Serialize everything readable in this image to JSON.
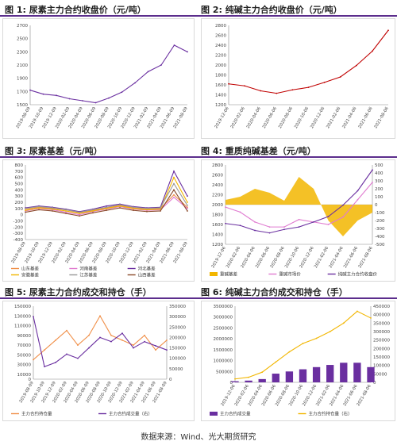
{
  "titles": {
    "c1": "图 1: 尿素主力合约收盘价（元/吨）",
    "c2": "图 2: 纯碱主力合约收盘价（元/吨）",
    "c3": "图 3: 尿素基差（元/吨）",
    "c4": "图 4: 重质纯碱基差（元/吨）",
    "c5": "图 5: 尿素主力合约成交和持仓（手）",
    "c6": "图 6: 纯碱主力合约成交和持仓（手）"
  },
  "source": "数据来源：Wind、光大期货研究",
  "colors": {
    "purple": "#6a2fa0",
    "red": "#c00000",
    "orange": "#f0904a",
    "gold": "#f2b600",
    "pink": "#e07bd0",
    "brown": "#8b4a2a",
    "accent": "#5b2d8c"
  },
  "chart_data": [
    {
      "id": "c1",
      "type": "line",
      "x": [
        "2019-08-09",
        "2019-10-09",
        "2019-12-09",
        "2020-02-09",
        "2020-04-09",
        "2020-06-09",
        "2020-08-09",
        "2020-10-09",
        "2020-12-09",
        "2021-02-09",
        "2021-04-09",
        "2021-06-09",
        "2021-08-09"
      ],
      "ylim": [
        1500,
        2700
      ],
      "yticks": [
        1500,
        1700,
        1900,
        2100,
        2300,
        2500,
        2700
      ],
      "series": [
        {
          "name": "",
          "color": "#6a2fa0",
          "values": [
            1720,
            1660,
            1640,
            1590,
            1560,
            1530,
            1600,
            1690,
            1830,
            2000,
            2100,
            2400,
            2300
          ]
        }
      ]
    },
    {
      "id": "c2",
      "type": "line",
      "x": [
        "2019-12-06",
        "2020-02-06",
        "2020-04-06",
        "2020-06-06",
        "2020-08-06",
        "2020-10-06",
        "2020-12-06",
        "2021-02-06",
        "2021-04-06",
        "2021-06-06",
        "2021-08-06"
      ],
      "ylim": [
        1200,
        2800
      ],
      "yticks": [
        1200,
        1400,
        1600,
        1800,
        2000,
        2200,
        2400,
        2600,
        2800
      ],
      "series": [
        {
          "name": "",
          "color": "#c00000",
          "values": [
            1620,
            1580,
            1480,
            1430,
            1500,
            1550,
            1650,
            1760,
            1990,
            2280,
            2700
          ]
        }
      ]
    },
    {
      "id": "c3",
      "type": "line",
      "x": [
        "2019-08-09",
        "2019-10-09",
        "2019-12-09",
        "2020-02-09",
        "2020-04-09",
        "2020-06-09",
        "2020-08-09",
        "2020-10-09",
        "2020-12-09",
        "2021-02-09",
        "2021-04-09",
        "2021-06-09",
        "2021-08-09"
      ],
      "ylim": [
        -400,
        800
      ],
      "yticks": [
        -400,
        -300,
        -200,
        -100,
        0,
        100,
        200,
        300,
        400,
        500,
        600,
        700,
        800
      ],
      "series": [
        {
          "name": "山东基差",
          "color": "#f0904a",
          "values": [
            90,
            120,
            100,
            80,
            30,
            70,
            110,
            150,
            110,
            90,
            100,
            320,
            120
          ]
        },
        {
          "name": "河南基差",
          "color": "#e07bd0",
          "values": [
            60,
            100,
            80,
            40,
            0,
            50,
            90,
            130,
            90,
            70,
            80,
            280,
            100
          ]
        },
        {
          "name": "河北基差",
          "color": "#6a2fa0",
          "values": [
            110,
            140,
            120,
            90,
            50,
            90,
            140,
            170,
            130,
            110,
            120,
            700,
            300
          ]
        },
        {
          "name": "安徽基差",
          "color": "#f2b600",
          "values": [
            70,
            110,
            90,
            60,
            20,
            60,
            100,
            140,
            100,
            80,
            90,
            600,
            200
          ]
        },
        {
          "name": "江苏基差",
          "color": "#999999",
          "values": [
            100,
            130,
            110,
            80,
            40,
            80,
            120,
            160,
            120,
            100,
            110,
            500,
            150
          ]
        },
        {
          "name": "山西基差",
          "color": "#8b4a2a",
          "values": [
            40,
            80,
            60,
            20,
            -20,
            30,
            70,
            110,
            70,
            50,
            60,
            400,
            60
          ]
        }
      ]
    },
    {
      "id": "c4",
      "type": "line",
      "x": [
        "2019-12-06",
        "2020-02-06",
        "2020-04-06",
        "2020-06-06",
        "2020-08-06",
        "2020-10-06",
        "2020-12-06",
        "2021-02-06",
        "2021-04-06",
        "2021-06-06",
        "2021-08-06"
      ],
      "ylim": [
        1200,
        2800
      ],
      "yticks": [
        1200,
        1400,
        1600,
        1800,
        2000,
        2200,
        2400,
        2600,
        2800
      ],
      "y2lim": [
        -500,
        500
      ],
      "y2ticks": [
        -500,
        -400,
        -300,
        -200,
        -100,
        0,
        100,
        200,
        300,
        400,
        500
      ],
      "series": [
        {
          "name": "重碱基差",
          "color": "#f2b600",
          "axis": "right",
          "kind": "area",
          "values": [
            60,
            100,
            200,
            150,
            50,
            350,
            200,
            -200,
            -400,
            -200,
            -100
          ]
        },
        {
          "name": "重碱市场价",
          "color": "#e07bd0",
          "axis": "left",
          "values": [
            1950,
            1850,
            1650,
            1550,
            1550,
            1700,
            1650,
            1600,
            1750,
            2100,
            2450
          ]
        },
        {
          "name": "纯碱主力合约收盘价",
          "color": "#6a2fa0",
          "axis": "left",
          "values": [
            1620,
            1580,
            1480,
            1430,
            1500,
            1550,
            1650,
            1760,
            1990,
            2280,
            2700
          ]
        }
      ]
    },
    {
      "id": "c5",
      "type": "line",
      "x": [
        "2019-08-09",
        "2019-10-09",
        "2019-12-09",
        "2020-02-09",
        "2020-04-09",
        "2020-06-09",
        "2020-08-09",
        "2020-10-09",
        "2020-12-09",
        "2021-02-09",
        "2021-04-09",
        "2021-06-09",
        "2021-08-09"
      ],
      "ylim": [
        0,
        150000
      ],
      "yticks": [
        0,
        10000,
        30000,
        50000,
        70000,
        90000,
        110000,
        130000,
        150000
      ],
      "y2lim": [
        0,
        350000
      ],
      "y2ticks": [
        0,
        50000,
        100000,
        150000,
        200000,
        250000,
        300000,
        350000
      ],
      "series": [
        {
          "name": "主力合约持仓量",
          "color": "#f0904a",
          "axis": "left",
          "values": [
            40000,
            60000,
            80000,
            100000,
            70000,
            90000,
            130000,
            90000,
            80000,
            70000,
            90000,
            60000,
            80000
          ]
        },
        {
          "name": "主力合约成交量（右）",
          "color": "#6a2fa0",
          "axis": "right",
          "values": [
            300000,
            60000,
            80000,
            120000,
            100000,
            150000,
            200000,
            180000,
            220000,
            150000,
            180000,
            160000,
            140000
          ]
        }
      ]
    },
    {
      "id": "c6",
      "type": "bar",
      "x": [
        "2019-12-06",
        "2020-02-06",
        "2020-04-06",
        "2020-06-06",
        "2020-08-06",
        "2020-10-06",
        "2020-12-06",
        "2021-02-06",
        "2021-04-06",
        "2021-06-06",
        "2021-08-06"
      ],
      "ylim": [
        0,
        3500000
      ],
      "yticks": [
        0,
        500000,
        1000000,
        1500000,
        2000000,
        2500000,
        3000000,
        3500000
      ],
      "y2lim": [
        0,
        450000
      ],
      "y2ticks": [
        0,
        50000,
        100000,
        150000,
        200000,
        250000,
        300000,
        350000,
        400000,
        450000
      ],
      "series": [
        {
          "name": "主力合约成交量",
          "color": "#6a2fa0",
          "axis": "left",
          "kind": "bar",
          "values": [
            50000,
            80000,
            150000,
            400000,
            500000,
            600000,
            700000,
            800000,
            900000,
            900000,
            700000
          ]
        },
        {
          "name": "主力合约持仓量（右）",
          "color": "#f2b600",
          "axis": "right",
          "values": [
            20000,
            30000,
            60000,
            120000,
            180000,
            230000,
            260000,
            300000,
            350000,
            420000,
            380000
          ]
        }
      ]
    }
  ]
}
